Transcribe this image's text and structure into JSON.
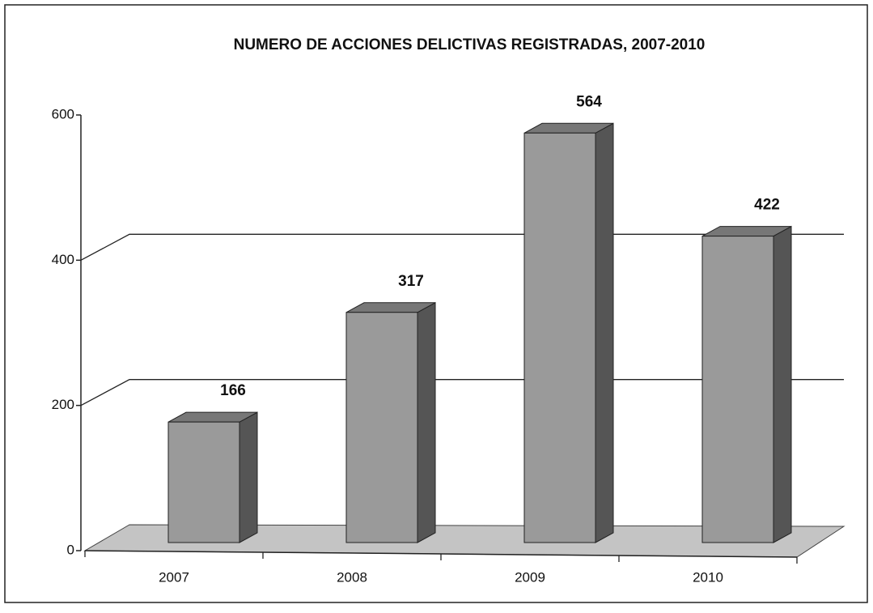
{
  "chart_data": {
    "type": "bar",
    "title": "NUMERO DE ACCIONES DELICTIVAS REGISTRADAS, 2007-2010",
    "categories": [
      "2007",
      "2008",
      "2009",
      "2010"
    ],
    "values": [
      166,
      317,
      564,
      422
    ],
    "color": "#9a9a9a",
    "ylim": [
      0,
      600
    ],
    "yticks": [
      0,
      200,
      400,
      600
    ],
    "grid": true
  }
}
